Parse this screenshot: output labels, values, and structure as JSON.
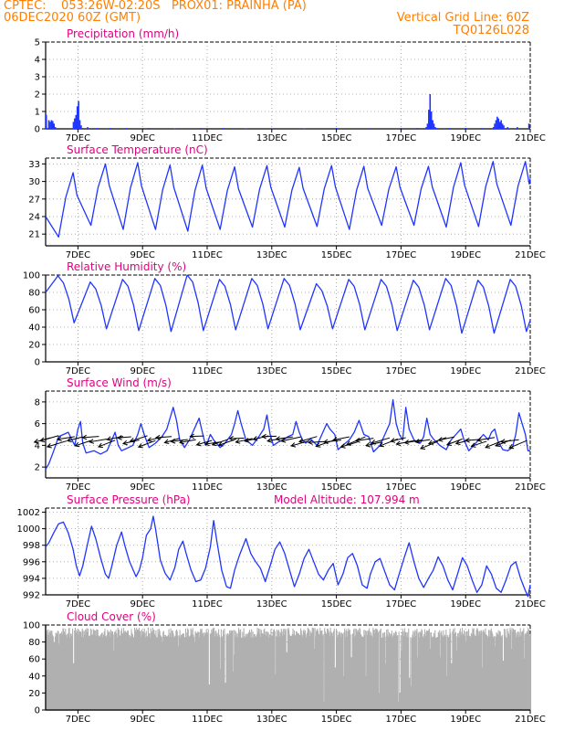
{
  "header": {
    "line1_left": "CPTEC:    053:26W-02:20S   PROX01: PRAINHA (PA)",
    "line2_left": "06DEC2020 60Z (GMT)",
    "line2_right": "Vertical Grid Line: 60Z",
    "line3_right": "TQ0126L028",
    "model_altitude": "Model Altitude: 107.994 m"
  },
  "colors": {
    "header": "#ff7f00",
    "title": "#e0007f",
    "series": "#1f35ff",
    "bars": "#1f35ff",
    "cloud": "#b0b0b0",
    "arrows": "#000000",
    "grid": "#9a9a9a"
  },
  "x_axis": {
    "start_day": 6,
    "end_day": 21,
    "ticks": [
      7,
      9,
      11,
      13,
      15,
      17,
      19,
      21
    ],
    "labels": [
      "7DEC",
      "9DEC",
      "11DEC",
      "13DEC",
      "15DEC",
      "17DEC",
      "19DEC",
      "21DEC"
    ]
  },
  "chart_data": [
    {
      "type": "bar",
      "name": "precip",
      "title": "Precipitation (mm/h)",
      "ylim": [
        0,
        5
      ],
      "yticks": [
        0,
        1,
        2,
        3,
        4,
        5
      ],
      "grid": true,
      "x": [
        6.02,
        6.1,
        6.14,
        6.18,
        6.22,
        6.26,
        6.3,
        6.86,
        6.9,
        6.94,
        6.98,
        7.02,
        7.06,
        7.1,
        7.3,
        7.6,
        8.0,
        8.5,
        9.2,
        10.0,
        10.8,
        11.5,
        12.2,
        13.0,
        14.0,
        15.0,
        16.0,
        17.0,
        17.5,
        17.78,
        17.82,
        17.86,
        17.9,
        17.94,
        17.98,
        18.02,
        18.06,
        18.1,
        18.5,
        19.0,
        19.5,
        19.86,
        19.9,
        19.94,
        19.98,
        20.02,
        20.06,
        20.1,
        20.14,
        20.18,
        20.3,
        20.6,
        20.96
      ],
      "values": [
        0.8,
        0.5,
        0.4,
        0.5,
        0.45,
        0.3,
        0.1,
        0.4,
        0.6,
        0.8,
        1.3,
        1.6,
        0.5,
        0.2,
        0.1,
        0.05,
        0.05,
        0.05,
        0.05,
        0.03,
        0.05,
        0.05,
        0.03,
        0.04,
        0.03,
        0.05,
        0.04,
        0.05,
        0.05,
        0.1,
        0.3,
        1.1,
        2.0,
        1.0,
        0.5,
        0.3,
        0.1,
        0.05,
        0.05,
        0.05,
        0.05,
        0.1,
        0.3,
        0.5,
        0.7,
        0.6,
        0.4,
        0.5,
        0.3,
        0.2,
        0.1,
        0.1,
        0.3
      ]
    },
    {
      "type": "line",
      "name": "temp",
      "title": "Surface Temperature (nC)",
      "ylim": [
        19,
        34
      ],
      "yticks": [
        21,
        24,
        27,
        30,
        33
      ],
      "grid": true,
      "daily_max": [
        31.5,
        33.0,
        33.2,
        32.8,
        32.8,
        32.5,
        32.7,
        32.4,
        32.7,
        32.6,
        32.5,
        32.6,
        33.2,
        33.4,
        33.4
      ],
      "daily_min": [
        20.5,
        22.5,
        21.8,
        21.8,
        21.5,
        21.8,
        22.2,
        22.2,
        22.3,
        21.8,
        22.5,
        22.5,
        22.2,
        22.3,
        22.5
      ],
      "start_value": 24.0,
      "end_value": 30.5
    },
    {
      "type": "line",
      "name": "rh",
      "title": "Relative Humidity (%)",
      "ylim": [
        0,
        100
      ],
      "yticks": [
        0,
        20,
        40,
        60,
        80,
        100
      ],
      "grid": true,
      "daily_min": [
        45,
        38,
        36,
        35,
        36,
        37,
        38,
        37,
        38,
        37,
        36,
        37,
        33,
        33,
        35
      ],
      "daily_max": [
        99,
        92,
        95,
        96,
        100,
        95,
        96,
        96,
        90,
        95,
        95,
        94,
        96,
        94,
        95
      ],
      "start_value": 80,
      "end_value": 48
    },
    {
      "type": "line",
      "name": "wind",
      "title": "Surface Wind (m/s)",
      "ylim": [
        1,
        9
      ],
      "yticks": [
        2,
        4,
        6,
        8
      ],
      "grid": true,
      "wind_speed_path": [
        [
          6.0,
          1.8
        ],
        [
          6.1,
          2.3
        ],
        [
          6.25,
          3.5
        ],
        [
          6.4,
          4.8
        ],
        [
          6.55,
          5.0
        ],
        [
          6.7,
          5.2
        ],
        [
          6.8,
          4.6
        ],
        [
          6.9,
          4.0
        ],
        [
          7.0,
          5.5
        ],
        [
          7.08,
          6.2
        ],
        [
          7.15,
          4.2
        ],
        [
          7.25,
          3.3
        ],
        [
          7.5,
          3.5
        ],
        [
          7.7,
          3.2
        ],
        [
          7.9,
          3.5
        ],
        [
          8.05,
          4.5
        ],
        [
          8.15,
          5.2
        ],
        [
          8.25,
          4.0
        ],
        [
          8.35,
          3.5
        ],
        [
          8.5,
          3.7
        ],
        [
          8.7,
          4.0
        ],
        [
          8.85,
          5.0
        ],
        [
          8.95,
          6.0
        ],
        [
          9.05,
          5.0
        ],
        [
          9.2,
          3.8
        ],
        [
          9.4,
          4.2
        ],
        [
          9.6,
          4.8
        ],
        [
          9.75,
          5.5
        ],
        [
          9.85,
          6.5
        ],
        [
          9.95,
          7.5
        ],
        [
          10.05,
          6.3
        ],
        [
          10.15,
          4.5
        ],
        [
          10.3,
          3.8
        ],
        [
          10.45,
          4.5
        ],
        [
          10.6,
          5.5
        ],
        [
          10.75,
          6.5
        ],
        [
          10.85,
          5.2
        ],
        [
          10.95,
          4.0
        ],
        [
          11.0,
          4.2
        ],
        [
          11.1,
          5.0
        ],
        [
          11.2,
          4.5
        ],
        [
          11.4,
          3.8
        ],
        [
          11.55,
          4.2
        ],
        [
          11.75,
          5.0
        ],
        [
          11.85,
          6.0
        ],
        [
          11.95,
          7.2
        ],
        [
          12.05,
          6.0
        ],
        [
          12.2,
          4.5
        ],
        [
          12.4,
          4.0
        ],
        [
          12.6,
          4.8
        ],
        [
          12.75,
          5.5
        ],
        [
          12.85,
          6.8
        ],
        [
          12.95,
          5.0
        ],
        [
          13.05,
          4.0
        ],
        [
          13.2,
          4.3
        ],
        [
          13.35,
          4.5
        ],
        [
          13.5,
          4.8
        ],
        [
          13.65,
          5.0
        ],
        [
          13.75,
          6.2
        ],
        [
          13.85,
          5.2
        ],
        [
          13.95,
          4.5
        ],
        [
          14.05,
          4.2
        ],
        [
          14.2,
          4.6
        ],
        [
          14.4,
          4.0
        ],
        [
          14.55,
          5.0
        ],
        [
          14.7,
          6.0
        ],
        [
          14.8,
          5.5
        ],
        [
          14.95,
          5.0
        ],
        [
          15.05,
          3.6
        ],
        [
          15.2,
          4.0
        ],
        [
          15.4,
          4.5
        ],
        [
          15.55,
          5.2
        ],
        [
          15.7,
          6.3
        ],
        [
          15.85,
          5.0
        ],
        [
          16.0,
          4.8
        ],
        [
          16.15,
          3.4
        ],
        [
          16.35,
          4.0
        ],
        [
          16.5,
          5.0
        ],
        [
          16.65,
          6.0
        ],
        [
          16.75,
          8.2
        ],
        [
          16.85,
          6.0
        ],
        [
          16.95,
          5.0
        ],
        [
          17.05,
          4.5
        ],
        [
          17.15,
          7.5
        ],
        [
          17.25,
          5.5
        ],
        [
          17.4,
          4.5
        ],
        [
          17.6,
          4.2
        ],
        [
          17.7,
          4.8
        ],
        [
          17.8,
          6.5
        ],
        [
          17.9,
          5.0
        ],
        [
          18.0,
          4.6
        ],
        [
          18.2,
          4.0
        ],
        [
          18.4,
          3.6
        ],
        [
          18.55,
          4.5
        ],
        [
          18.7,
          5.0
        ],
        [
          18.85,
          5.5
        ],
        [
          18.95,
          4.5
        ],
        [
          19.1,
          3.5
        ],
        [
          19.25,
          4.0
        ],
        [
          19.4,
          4.5
        ],
        [
          19.55,
          5.0
        ],
        [
          19.7,
          4.5
        ],
        [
          19.8,
          5.2
        ],
        [
          19.9,
          5.5
        ],
        [
          20.0,
          4.4
        ],
        [
          20.15,
          3.6
        ],
        [
          20.3,
          3.5
        ],
        [
          20.45,
          3.8
        ],
        [
          20.55,
          5.0
        ],
        [
          20.65,
          7.0
        ],
        [
          20.75,
          6.0
        ],
        [
          20.85,
          5.0
        ],
        [
          20.93,
          3.5
        ],
        [
          21.0,
          3.5
        ]
      ],
      "arrows_every_days": 0.25,
      "arrow_direction": "toward lower-left (wind from the northeast)"
    },
    {
      "type": "line",
      "name": "pres",
      "title": "Surface Pressure (hPa)",
      "ylim": [
        992,
        1002.5
      ],
      "yticks": [
        992,
        994,
        996,
        998,
        1000,
        1002
      ],
      "grid": true,
      "path": [
        [
          6.0,
          997.8
        ],
        [
          6.1,
          998.3
        ],
        [
          6.25,
          999.5
        ],
        [
          6.4,
          1000.6
        ],
        [
          6.55,
          1000.8
        ],
        [
          6.7,
          999.5
        ],
        [
          6.85,
          997.5
        ],
        [
          6.95,
          995.5
        ],
        [
          7.05,
          994.3
        ],
        [
          7.15,
          995.5
        ],
        [
          7.3,
          998.2
        ],
        [
          7.42,
          1000.3
        ],
        [
          7.55,
          998.8
        ],
        [
          7.7,
          996.5
        ],
        [
          7.85,
          994.5
        ],
        [
          7.95,
          994.0
        ],
        [
          8.05,
          995.5
        ],
        [
          8.2,
          998.0
        ],
        [
          8.35,
          999.6
        ],
        [
          8.45,
          998.0
        ],
        [
          8.6,
          996.0
        ],
        [
          8.8,
          994.2
        ],
        [
          8.9,
          995.0
        ],
        [
          9.0,
          996.5
        ],
        [
          9.12,
          999.2
        ],
        [
          9.25,
          1000.0
        ],
        [
          9.33,
          1001.5
        ],
        [
          9.4,
          1000.0
        ],
        [
          9.55,
          996.2
        ],
        [
          9.7,
          994.6
        ],
        [
          9.85,
          993.8
        ],
        [
          10.0,
          995.3
        ],
        [
          10.12,
          997.5
        ],
        [
          10.25,
          998.5
        ],
        [
          10.35,
          997.0
        ],
        [
          10.5,
          995.0
        ],
        [
          10.65,
          993.6
        ],
        [
          10.8,
          993.8
        ],
        [
          10.95,
          995.2
        ],
        [
          11.1,
          997.8
        ],
        [
          11.2,
          1001.0
        ],
        [
          11.3,
          998.5
        ],
        [
          11.45,
          995.0
        ],
        [
          11.6,
          993.0
        ],
        [
          11.72,
          992.8
        ],
        [
          11.85,
          995.0
        ],
        [
          12.0,
          996.8
        ],
        [
          12.2,
          998.8
        ],
        [
          12.35,
          997.0
        ],
        [
          12.5,
          996.0
        ],
        [
          12.65,
          995.2
        ],
        [
          12.8,
          993.6
        ],
        [
          12.95,
          995.5
        ],
        [
          13.1,
          997.5
        ],
        [
          13.25,
          998.4
        ],
        [
          13.4,
          997.0
        ],
        [
          13.55,
          995.0
        ],
        [
          13.7,
          993.0
        ],
        [
          13.85,
          994.5
        ],
        [
          14.0,
          996.4
        ],
        [
          14.15,
          997.5
        ],
        [
          14.3,
          996.0
        ],
        [
          14.45,
          994.5
        ],
        [
          14.6,
          993.8
        ],
        [
          14.75,
          995.0
        ],
        [
          14.9,
          995.8
        ],
        [
          15.05,
          993.2
        ],
        [
          15.2,
          994.5
        ],
        [
          15.35,
          996.5
        ],
        [
          15.5,
          997.0
        ],
        [
          15.65,
          995.5
        ],
        [
          15.8,
          993.2
        ],
        [
          15.95,
          992.8
        ],
        [
          16.05,
          994.5
        ],
        [
          16.2,
          996.0
        ],
        [
          16.35,
          996.4
        ],
        [
          16.5,
          994.8
        ],
        [
          16.65,
          993.2
        ],
        [
          16.8,
          992.6
        ],
        [
          16.95,
          994.6
        ],
        [
          17.1,
          996.5
        ],
        [
          17.25,
          998.3
        ],
        [
          17.4,
          996.0
        ],
        [
          17.55,
          994.0
        ],
        [
          17.7,
          992.9
        ],
        [
          17.85,
          994.0
        ],
        [
          18.0,
          995.0
        ],
        [
          18.15,
          996.6
        ],
        [
          18.3,
          995.5
        ],
        [
          18.45,
          993.8
        ],
        [
          18.6,
          992.6
        ],
        [
          18.75,
          994.5
        ],
        [
          18.9,
          996.5
        ],
        [
          19.05,
          995.5
        ],
        [
          19.2,
          993.8
        ],
        [
          19.35,
          992.3
        ],
        [
          19.5,
          993.2
        ],
        [
          19.65,
          995.5
        ],
        [
          19.8,
          994.5
        ],
        [
          19.95,
          992.8
        ],
        [
          20.1,
          992.3
        ],
        [
          20.25,
          993.8
        ],
        [
          20.4,
          995.5
        ],
        [
          20.55,
          996.0
        ],
        [
          20.7,
          994.0
        ],
        [
          20.85,
          992.5
        ],
        [
          20.93,
          991.8
        ],
        [
          21.0,
          993.2
        ]
      ]
    },
    {
      "type": "bar",
      "name": "cloud",
      "title": "Cloud Cover (%)",
      "ylim": [
        0,
        100
      ],
      "yticks": [
        0,
        20,
        40,
        60,
        80,
        100
      ],
      "grid": true,
      "typical_range": [
        85,
        97
      ],
      "dips": [
        [
          6.25,
          80
        ],
        [
          6.4,
          78
        ],
        [
          6.85,
          55
        ],
        [
          8.1,
          70
        ],
        [
          9.6,
          80
        ],
        [
          10.1,
          75
        ],
        [
          10.6,
          80
        ],
        [
          11.05,
          30
        ],
        [
          11.4,
          48
        ],
        [
          11.55,
          32
        ],
        [
          11.78,
          45
        ],
        [
          11.82,
          65
        ],
        [
          12.05,
          85
        ],
        [
          13.1,
          42
        ],
        [
          13.45,
          68
        ],
        [
          14.3,
          72
        ],
        [
          14.6,
          10
        ],
        [
          14.95,
          50
        ],
        [
          15.2,
          40
        ],
        [
          15.45,
          62
        ],
        [
          15.9,
          40
        ],
        [
          16.3,
          20
        ],
        [
          16.5,
          55
        ],
        [
          16.9,
          10
        ],
        [
          16.95,
          20
        ],
        [
          17.0,
          70
        ],
        [
          17.25,
          38
        ],
        [
          17.3,
          28
        ],
        [
          17.5,
          62
        ],
        [
          17.9,
          72
        ],
        [
          18.2,
          62
        ],
        [
          18.4,
          40
        ],
        [
          18.55,
          55
        ],
        [
          18.7,
          70
        ],
        [
          19.0,
          80
        ],
        [
          19.5,
          50
        ],
        [
          19.9,
          75
        ],
        [
          20.15,
          58
        ],
        [
          20.4,
          72
        ],
        [
          20.8,
          60
        ]
      ]
    }
  ]
}
